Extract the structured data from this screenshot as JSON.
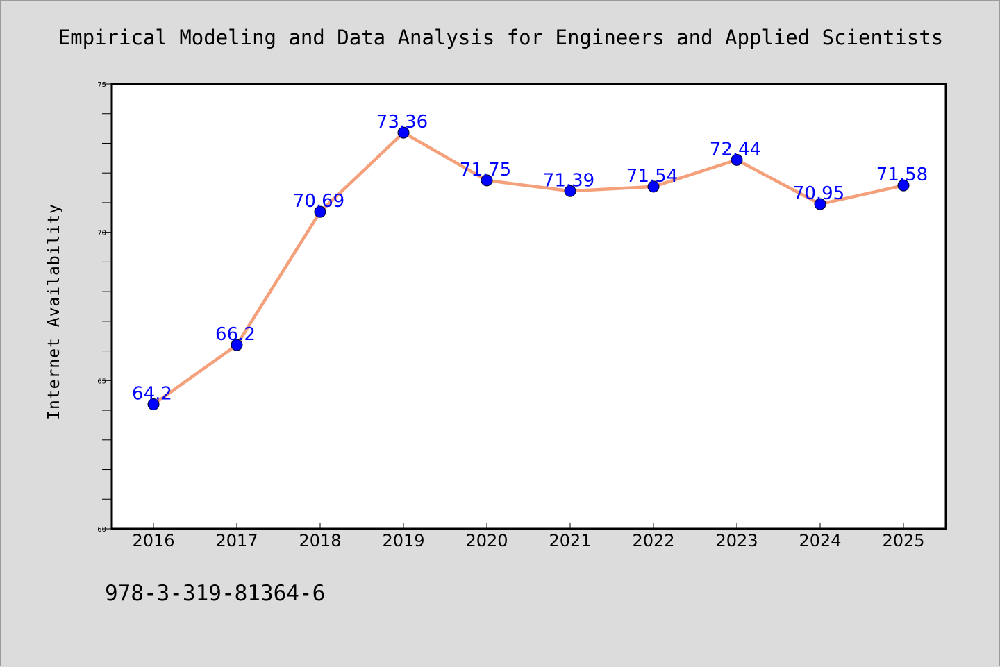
{
  "chart_data": {
    "type": "line",
    "title": "Empirical Modeling and Data Analysis for Engineers and Applied Scientists",
    "xlabel": "",
    "ylabel": "Internet Availability",
    "x": [
      "2016",
      "2017",
      "2018",
      "2019",
      "2020",
      "2021",
      "2022",
      "2023",
      "2024",
      "2025"
    ],
    "series": [
      {
        "values": [
          64.2,
          66.2,
          70.69,
          73.36,
          71.75,
          71.39,
          71.54,
          72.44,
          70.95,
          71.58
        ],
        "labels": [
          "64.2",
          "66.2",
          "70.69",
          "73.36",
          "71.75",
          "71.39",
          "71.54",
          "72.44",
          "70.95",
          "71.58"
        ],
        "line_color": "#f4a07a",
        "marker_color": "#0000ff"
      }
    ],
    "ylim": [
      60,
      75
    ],
    "yticks": [
      "60",
      "65",
      "70",
      "75"
    ],
    "grid": false,
    "legend": "none"
  },
  "footer": {
    "isbn": "978-3-319-81364-6"
  }
}
